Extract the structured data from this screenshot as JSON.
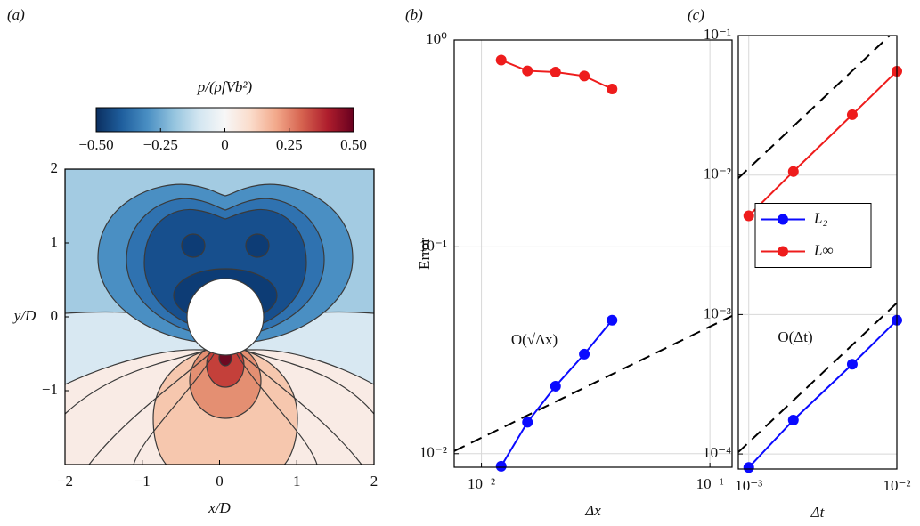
{
  "chart_data": [
    {
      "type": "contour",
      "panel_label": "(a)",
      "xlabel": "x/D",
      "ylabel": "y/D",
      "xlim": [
        -2,
        2
      ],
      "ylim": [
        -2,
        2
      ],
      "xticks": [
        {
          "value": -2,
          "label": "−2"
        },
        {
          "value": -1,
          "label": "−1"
        },
        0,
        1,
        2
      ],
      "yticks": [
        {
          "value": -1,
          "label": "−1"
        },
        0,
        1,
        2
      ],
      "colorbar": {
        "title": "p/(ρfVb²)",
        "clim": [
          -0.5,
          0.5
        ],
        "ticks": [
          {
            "value": -0.5,
            "label": "−0.50"
          },
          {
            "value": -0.25,
            "label": "−0.25"
          },
          0,
          0.25,
          {
            "value": 0.5,
            "label": "0.50"
          }
        ],
        "colormap": [
          "#0b2f60",
          "#1f5f9e",
          "#4a8fc3",
          "#93c3de",
          "#d3e6f1",
          "#f7f7f7",
          "#fbdccb",
          "#f2a88a",
          "#d5624f",
          "#ae1d2c",
          "#67001f"
        ]
      }
    },
    {
      "type": "line",
      "panel_label": "(b)",
      "xlabel": "Δx",
      "ylabel": "Error",
      "log_x": true,
      "log_y": true,
      "grid": true,
      "xlim": [
        0.0076,
        0.125
      ],
      "ylim": [
        0.0086,
        1
      ],
      "xticks": [
        {
          "value": 0.01,
          "label": "10⁻²"
        },
        {
          "value": 0.1,
          "label": "10⁻¹"
        }
      ],
      "yticks": [
        {
          "value": 0.01,
          "label": "10⁻²"
        },
        {
          "value": 0.1,
          "label": "10⁻¹"
        },
        {
          "value": 1,
          "label": "10⁰"
        }
      ],
      "x": [
        0.0122,
        0.0159,
        0.0211,
        0.0282,
        0.0373
      ],
      "series": [
        {
          "color": "#0a0aff",
          "values": [
            0.0087,
            0.0142,
            0.0212,
            0.0303,
            0.0442
          ]
        },
        {
          "color": "#ee1c1c",
          "values": [
            0.8,
            0.71,
            0.7,
            0.67,
            0.58
          ]
        }
      ],
      "reference_lines": [
        {
          "x": [
            0.0076,
            0.125
          ],
          "values": [
            0.0103,
            0.0464
          ]
        }
      ],
      "annotation": "O(√Δx)"
    },
    {
      "type": "line",
      "panel_label": "(c)",
      "xlabel": "Δt",
      "log_x": true,
      "log_y": true,
      "grid": true,
      "legend": "center left",
      "xlim": [
        0.00085,
        0.01
      ],
      "ylim": [
        7.8e-05,
        0.1
      ],
      "xticks": [
        {
          "value": 0.001,
          "label": "10⁻³"
        },
        {
          "value": 0.01,
          "label": "10⁻²"
        }
      ],
      "yticks": [
        {
          "value": 0.0001,
          "label": "10⁻⁴"
        },
        {
          "value": 0.001,
          "label": "10⁻³"
        },
        {
          "value": 0.01,
          "label": "10⁻²"
        },
        {
          "value": 0.1,
          "label": "10⁻¹"
        }
      ],
      "x": [
        0.001,
        0.002,
        0.005,
        0.01
      ],
      "series": [
        {
          "name": "L₂",
          "color": "#0a0aff",
          "values": [
            8e-05,
            0.000175,
            0.00044,
            0.00091
          ]
        },
        {
          "name": "L∞",
          "color": "#ee1c1c",
          "values": [
            0.0051,
            0.0106,
            0.0271,
            0.0556
          ]
        }
      ],
      "reference_lines": [
        {
          "x": [
            0.00085,
            0.0089
          ],
          "values": [
            0.0095,
            0.0995
          ]
        },
        {
          "x": [
            0.00085,
            0.01
          ],
          "values": [
            0.000103,
            0.00121
          ]
        }
      ],
      "annotation": "O(Δt)"
    }
  ]
}
